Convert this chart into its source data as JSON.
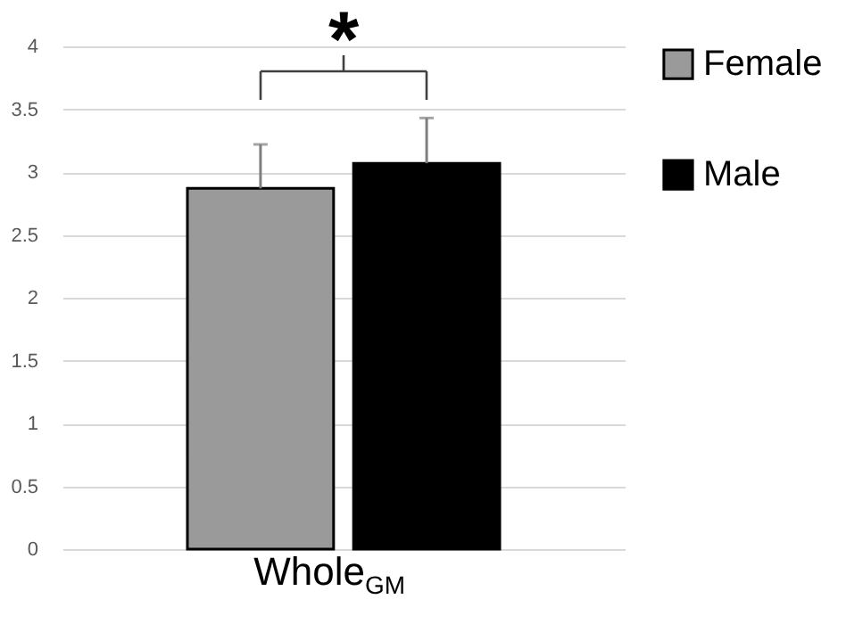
{
  "chart_data": {
    "type": "bar",
    "categories": [
      "Whole$_{GM}$"
    ],
    "series": [
      {
        "name": "Female",
        "color": "#9a9a9a",
        "values": [
          2.87
        ],
        "errors": [
          [
            2.87,
            3.22
          ]
        ]
      },
      {
        "name": "Male",
        "color": "#000000",
        "values": [
          3.07
        ],
        "errors": [
          [
            3.07,
            3.43
          ]
        ]
      }
    ],
    "ylim": [
      0,
      4
    ],
    "yticks": [
      0,
      0.5,
      1,
      1.5,
      2,
      2.5,
      3,
      3.5,
      4
    ],
    "grid": "y",
    "legend": "right",
    "annotations": [
      "*"
    ]
  }
}
